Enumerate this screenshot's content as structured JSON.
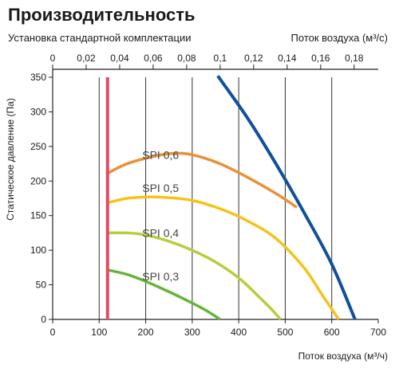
{
  "header": {
    "title": "Производительность",
    "subtitle": "Установка стандартной комплектации",
    "top_axis_label": "Поток воздуха (м³/с)",
    "bottom_axis_label": "Поток воздуха (м³/ч)",
    "y_axis_label": "Статическое давление (Па)"
  },
  "chart_data": {
    "type": "line",
    "title": "Производительность",
    "subtitle": "Установка стандартной комплектации",
    "xlabel": "Поток воздуха (м³/ч)",
    "x2label": "Поток воздуха (м³/с)",
    "ylabel": "Статическое давление (Па)",
    "xlim": [
      0,
      700
    ],
    "ylim": [
      0,
      350
    ],
    "x2lim": [
      0,
      0.1944
    ],
    "xticks": [
      0,
      100,
      200,
      300,
      400,
      500,
      600,
      700
    ],
    "yticks": [
      0,
      50,
      100,
      150,
      200,
      250,
      300,
      350
    ],
    "x2ticks": [
      "0",
      "0,02",
      "0,04",
      "0,06",
      "0,08",
      "0,1",
      "0,12",
      "0,14",
      "0,16",
      "0,18"
    ],
    "x2tick_values": [
      0,
      0.02,
      0.04,
      0.06,
      0.08,
      0.1,
      0.12,
      0.14,
      0.16,
      0.18
    ],
    "grid": "vertical",
    "series": [
      {
        "name": "SPI 0,6",
        "color": "#e8913a",
        "x": [
          115,
          160,
          220,
          260,
          300,
          360,
          420,
          480,
          525
        ],
        "y": [
          210,
          225,
          236,
          240,
          238,
          225,
          205,
          182,
          162
        ],
        "label_at": [
          232,
          238
        ]
      },
      {
        "name": "SPI 0,5",
        "color": "#f6c21c",
        "x": [
          115,
          160,
          210,
          250,
          300,
          360,
          420,
          480,
          540,
          580,
          615
        ],
        "y": [
          168,
          175,
          177,
          176,
          172,
          160,
          142,
          117,
          75,
          35,
          0
        ],
        "label_at": [
          232,
          190
        ]
      },
      {
        "name": "SPI 0,4",
        "color": "#b3cf3e",
        "x": [
          115,
          160,
          200,
          250,
          300,
          350,
          400,
          440,
          470,
          490
        ],
        "y": [
          125,
          125,
          122,
          113,
          100,
          83,
          60,
          35,
          15,
          0
        ],
        "label_at": [
          232,
          125
        ]
      },
      {
        "name": "SPI 0,3",
        "color": "#66b53b",
        "x": [
          115,
          160,
          200,
          250,
          290,
          330,
          360
        ],
        "y": [
          72,
          65,
          55,
          40,
          27,
          13,
          0
        ],
        "label_at": [
          232,
          62
        ]
      },
      {
        "name": "",
        "color": "#11509a",
        "x": [
          355,
          420,
          480,
          540,
          600,
          650
        ],
        "y": [
          352,
          290,
          225,
          155,
          80,
          0
        ]
      },
      {
        "name": "",
        "color": "#e34b63",
        "x": [
          118,
          118
        ],
        "y": [
          0,
          350
        ]
      }
    ]
  }
}
